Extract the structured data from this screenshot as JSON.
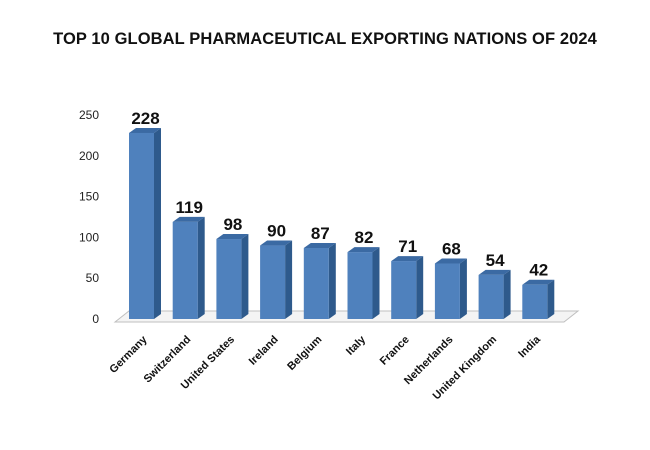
{
  "chart_data": {
    "type": "bar",
    "title": "TOP 10 GLOBAL PHARMACEUTICAL EXPORTING NATIONS OF 2024",
    "categories": [
      "Germany",
      "Switzerland",
      "United States",
      "Ireland",
      "Belgium",
      "Italy",
      "France",
      "Netherlands",
      "United Kingdom",
      "India"
    ],
    "values": [
      228,
      119,
      98,
      90,
      87,
      82,
      71,
      68,
      54,
      42
    ],
    "data_labels": [
      "228",
      "119",
      "98",
      "90",
      "87",
      "82",
      "71",
      "68",
      "54",
      "42"
    ],
    "y_ticks": [
      0,
      50,
      100,
      150,
      200,
      250
    ],
    "ylim": [
      0,
      250
    ],
    "xlabel": "",
    "ylabel": "",
    "grid": false,
    "style": "3d-column",
    "colors": {
      "bar_front": "#4f81bd",
      "bar_side": "#2e5a8c",
      "bar_top": "#3b6aa3",
      "floor": "#f4f4f4"
    }
  }
}
